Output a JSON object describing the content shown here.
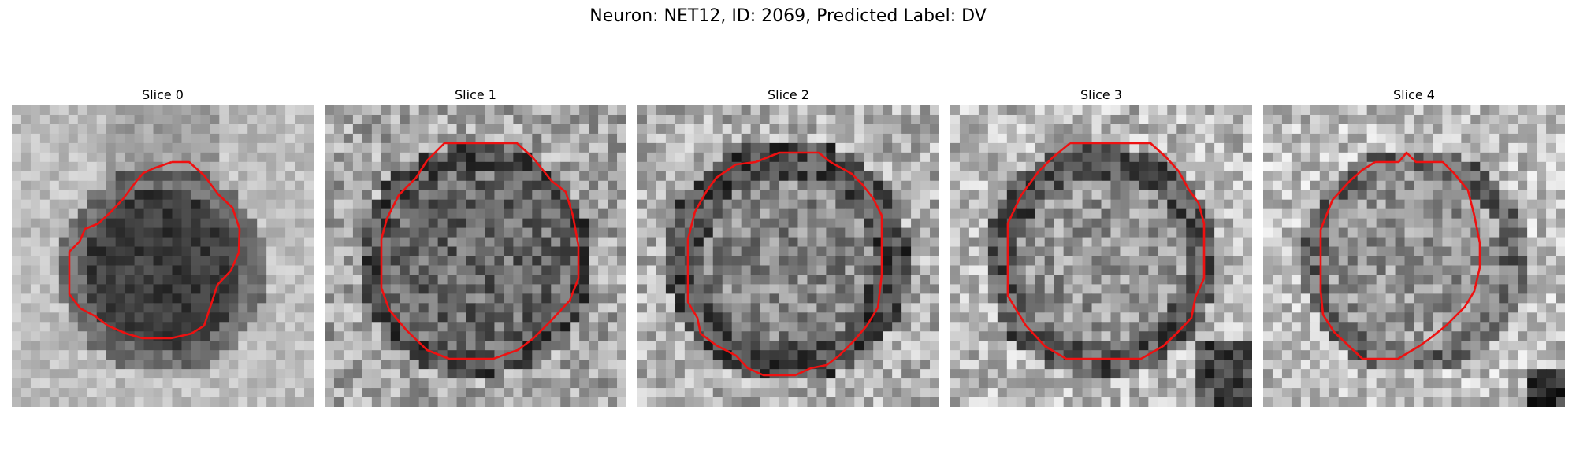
{
  "figure": {
    "title": "Neuron: NET12, ID: 2069, Predicted Label: DV"
  },
  "colors": {
    "contour": "#ee1111",
    "background": "#ffffff"
  },
  "panels": [
    {
      "title": "Slice 0",
      "seed": 11,
      "pattern": "blob"
    },
    {
      "title": "Slice 1",
      "seed": 23,
      "pattern": "noisy-ring"
    },
    {
      "title": "Slice 2",
      "seed": 37,
      "pattern": "ring"
    },
    {
      "title": "Slice 3",
      "seed": 41,
      "pattern": "ring-dark-corner"
    },
    {
      "title": "Slice 4",
      "seed": 53,
      "pattern": "light-ring"
    }
  ]
}
